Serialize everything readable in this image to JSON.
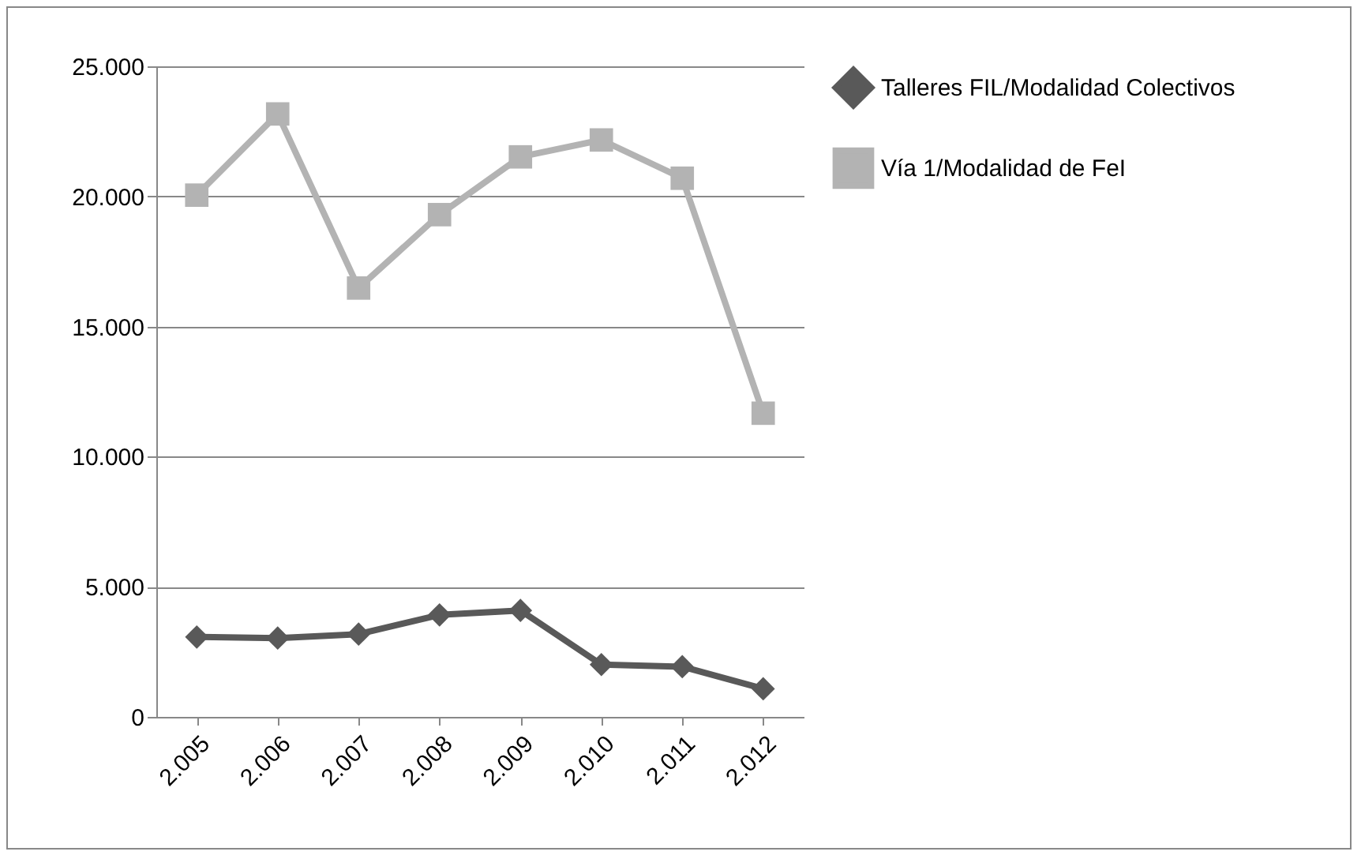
{
  "chart_data": {
    "type": "line",
    "categories": [
      "2.005",
      "2.006",
      "2.007",
      "2.008",
      "2.009",
      "2.010",
      "2.011",
      "2.012"
    ],
    "series": [
      {
        "name": "Talleres FIL/Modalidad Colectivos",
        "color": "#595959",
        "marker": "diamond",
        "values": [
          3070,
          3030,
          3180,
          3920,
          4090,
          2010,
          1930,
          1080
        ]
      },
      {
        "name": "Vía 1/Modalidad de FeI",
        "color": "#b3b3b3",
        "marker": "square",
        "values": [
          20050,
          23170,
          16480,
          19300,
          21520,
          22170,
          20700,
          11670
        ]
      }
    ],
    "ylim": [
      0,
      25000
    ],
    "yticks": [
      {
        "value": 0,
        "label": "0"
      },
      {
        "value": 5000,
        "label": "5.000"
      },
      {
        "value": 10000,
        "label": "10.000"
      },
      {
        "value": 15000,
        "label": "15.000"
      },
      {
        "value": 20000,
        "label": "20.000"
      },
      {
        "value": 25000,
        "label": "25.000"
      }
    ],
    "grid": "y",
    "legend": "right"
  }
}
